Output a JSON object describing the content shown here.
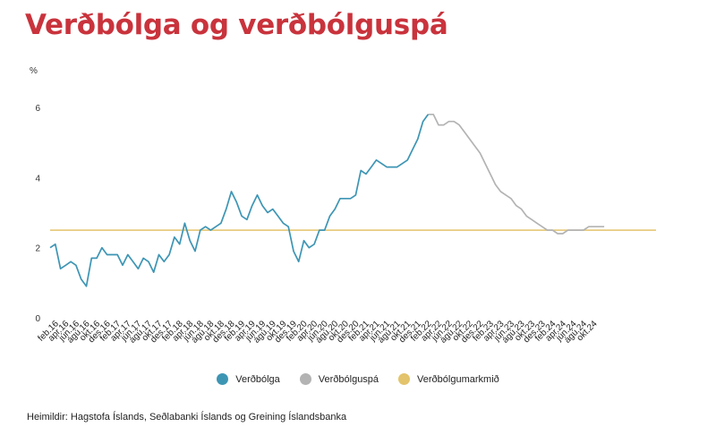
{
  "title": "Verðbólga og verðbólguspá",
  "chart_data": {
    "type": "line",
    "unit_label": "%",
    "ylim": [
      0,
      6
    ],
    "yticks": [
      "0",
      "2",
      "4",
      "6"
    ],
    "grid": false,
    "legend_position": "bottom",
    "x_tick_labels": [
      "feb.16",
      "apr.16",
      "jún.16",
      "ágú.16",
      "okt.16",
      "des.16",
      "feb.17",
      "apr.17",
      "jún.17",
      "ágú.17",
      "okt.17",
      "des.17",
      "feb.18",
      "apr.18",
      "jún.18",
      "ágú.18",
      "okt.18",
      "des.18",
      "feb.19",
      "apr.19",
      "jún.19",
      "ágú.19",
      "okt.19",
      "des.19",
      "feb.20",
      "apr.20",
      "jún.20",
      "ágú.20",
      "okt.20",
      "des.20",
      "feb.21",
      "apr.21",
      "jún.21",
      "ágú.21",
      "okt.21",
      "des.21",
      "feb.22",
      "apr.22",
      "jún.22",
      "ágú.22",
      "okt.22",
      "des.22",
      "feb.23",
      "apr.23",
      "jún.23",
      "ágú.23",
      "okt.23",
      "des.23",
      "feb.24",
      "apr.24",
      "jún.24",
      "ágú.24",
      "okt.24"
    ],
    "series": [
      {
        "name": "Verðbólga",
        "color": "#3d95b4",
        "start": "jan.16",
        "values": [
          2.0,
          2.1,
          1.4,
          1.5,
          1.6,
          1.5,
          1.1,
          0.9,
          1.7,
          1.7,
          2.0,
          1.8,
          1.8,
          1.8,
          1.5,
          1.8,
          1.6,
          1.4,
          1.7,
          1.6,
          1.3,
          1.8,
          1.6,
          1.8,
          2.3,
          2.1,
          2.7,
          2.2,
          1.9,
          2.5,
          2.6,
          2.5,
          2.6,
          2.7,
          3.1,
          3.6,
          3.3,
          2.9,
          2.8,
          3.2,
          3.5,
          3.2,
          3.0,
          3.1,
          2.9,
          2.7,
          2.6,
          1.9,
          1.6,
          2.2,
          2.0,
          2.1,
          2.5,
          2.5,
          2.9,
          3.1,
          3.4,
          3.4,
          3.4,
          3.5,
          4.2,
          4.1,
          4.3,
          4.5,
          4.4,
          4.3,
          4.3,
          4.3,
          4.4,
          4.5,
          4.8,
          5.1,
          5.6,
          5.8
        ]
      },
      {
        "name": "Verðbólguspá",
        "color": "#b3b3b3",
        "start": "feb.22",
        "values": [
          5.8,
          5.8,
          5.5,
          5.5,
          5.6,
          5.6,
          5.5,
          5.3,
          5.1,
          4.9,
          4.7,
          4.4,
          4.1,
          3.8,
          3.6,
          3.5,
          3.4,
          3.2,
          3.1,
          2.9,
          2.8,
          2.7,
          2.6,
          2.5,
          2.5,
          2.4,
          2.4,
          2.5,
          2.5,
          2.5,
          2.5,
          2.6,
          2.6,
          2.6,
          2.6
        ]
      },
      {
        "name": "Verðbólgumarkmið",
        "color": "#e3c36b",
        "values": [
          2.5
        ]
      }
    ]
  },
  "source": "Heimildir: Hagstofa Íslands, Seðlabanki Íslands og Greining Íslandsbanka"
}
